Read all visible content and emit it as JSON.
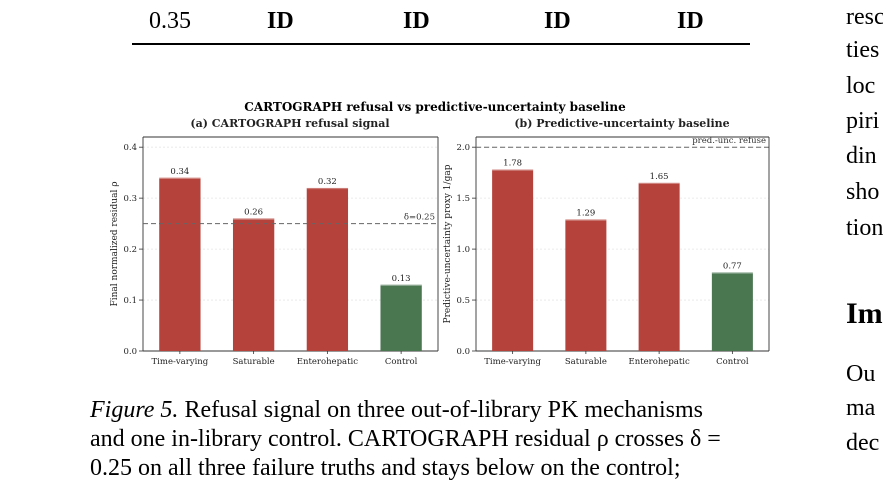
{
  "table": {
    "cells": [
      "0.35",
      "ID",
      "ID",
      "ID",
      "ID"
    ]
  },
  "right_column": {
    "lines": [
      "resc",
      "ties",
      "loc",
      "piri",
      "din",
      "sho",
      "tion"
    ],
    "heading": "Im",
    "lines2": [
      "Ou",
      "ma",
      "dec"
    ]
  },
  "figure": {
    "title": "CARTOGRAPH refusal vs predictive-uncertainty baseline",
    "caption_label": "Figure 5.",
    "caption_lines": [
      "Refusal signal on three out-of-library PK mechanisms",
      "and one in-library control. CARTOGRAPH residual ρ crosses δ =",
      "0.25 on all three failure truths and stays below on the control;"
    ]
  },
  "chart_data": [
    {
      "type": "bar",
      "title": "(a) CARTOGRAPH refusal signal",
      "categories": [
        "Time-varying",
        "Saturable",
        "Enterohepatic",
        "Control"
      ],
      "values": [
        0.34,
        0.26,
        0.32,
        0.13
      ],
      "value_labels": [
        "0.34",
        "0.26",
        "0.32",
        "0.13"
      ],
      "colors": [
        "#b5433c",
        "#b5433c",
        "#b5433c",
        "#4a7650"
      ],
      "ylabel": "Final normalized residual ρ",
      "ylim": [
        0,
        0.42
      ],
      "yticks": [
        0.0,
        0.1,
        0.2,
        0.3,
        0.4
      ],
      "ytick_labels": [
        "0.0",
        "0.1",
        "0.2",
        "0.3",
        "0.4"
      ],
      "threshold": {
        "value": 0.25,
        "label": "δ=0.25"
      }
    },
    {
      "type": "bar",
      "title": "(b) Predictive-uncertainty baseline",
      "categories": [
        "Time-varying",
        "Saturable",
        "Enterohepatic",
        "Control"
      ],
      "values": [
        1.78,
        1.29,
        1.65,
        0.77
      ],
      "value_labels": [
        "1.78",
        "1.29",
        "1.65",
        "0.77"
      ],
      "colors": [
        "#b5433c",
        "#b5433c",
        "#b5433c",
        "#4a7650"
      ],
      "ylabel": "Predictive-uncertainty proxy 1/gap",
      "ylim": [
        0,
        2.1
      ],
      "yticks": [
        0.0,
        0.5,
        1.0,
        1.5,
        2.0
      ],
      "ytick_labels": [
        "0.0",
        "0.5",
        "1.0",
        "1.5",
        "2.0"
      ],
      "threshold": {
        "value": 2.0,
        "label": "pred.-unc. refuse"
      }
    }
  ]
}
